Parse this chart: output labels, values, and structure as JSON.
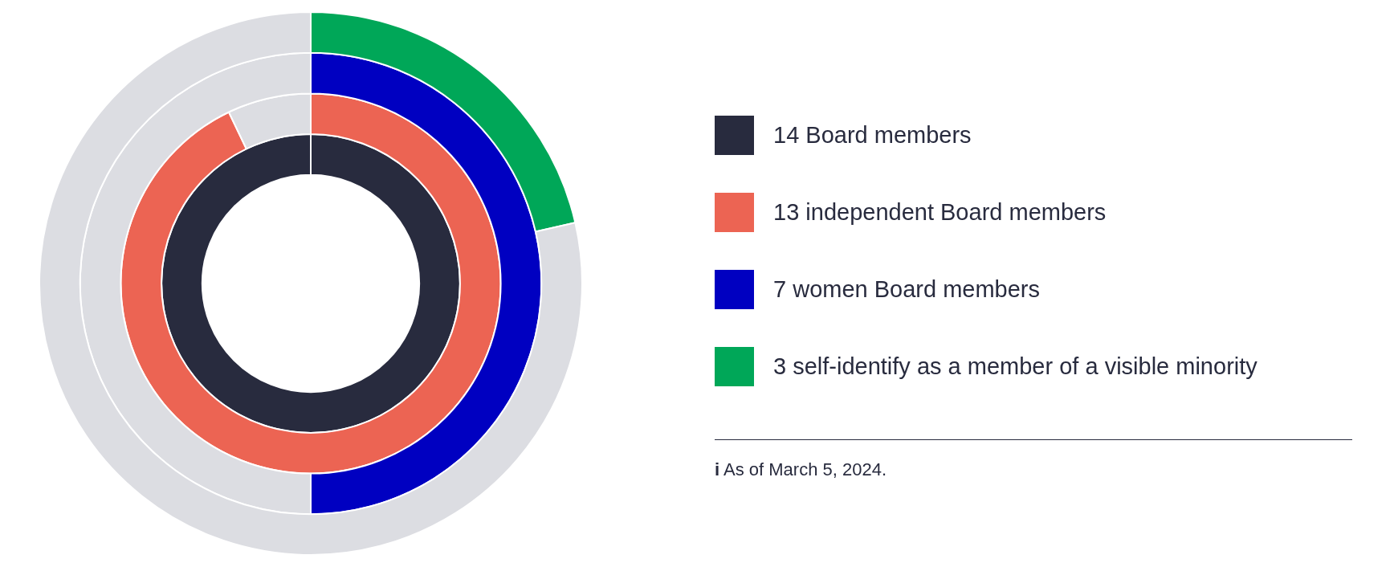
{
  "chart_data": {
    "type": "donut",
    "series": [
      {
        "name": "14 Board members",
        "color": "#282b3e",
        "colors": [
          "#282b3e"
        ],
        "values": [
          100
        ]
      },
      {
        "name": "13 independent Board members",
        "color": "#ec6453",
        "colors": [
          "#ec6453",
          "#dcdde2"
        ],
        "values": [
          92.9,
          7.1
        ]
      },
      {
        "name": "7 women Board members",
        "color": "#0000c1",
        "colors": [
          "#0000c1",
          "#dcdde2"
        ],
        "values": [
          50,
          50
        ]
      },
      {
        "name": "3 self-identify as a member of a visible minority",
        "color": "#00a758",
        "colors": [
          "#00a758",
          "#dcdde2"
        ],
        "values": [
          21.4,
          78.6
        ]
      }
    ],
    "legend": "right",
    "annotations": [
      "i As of March 5, 2024."
    ]
  }
}
